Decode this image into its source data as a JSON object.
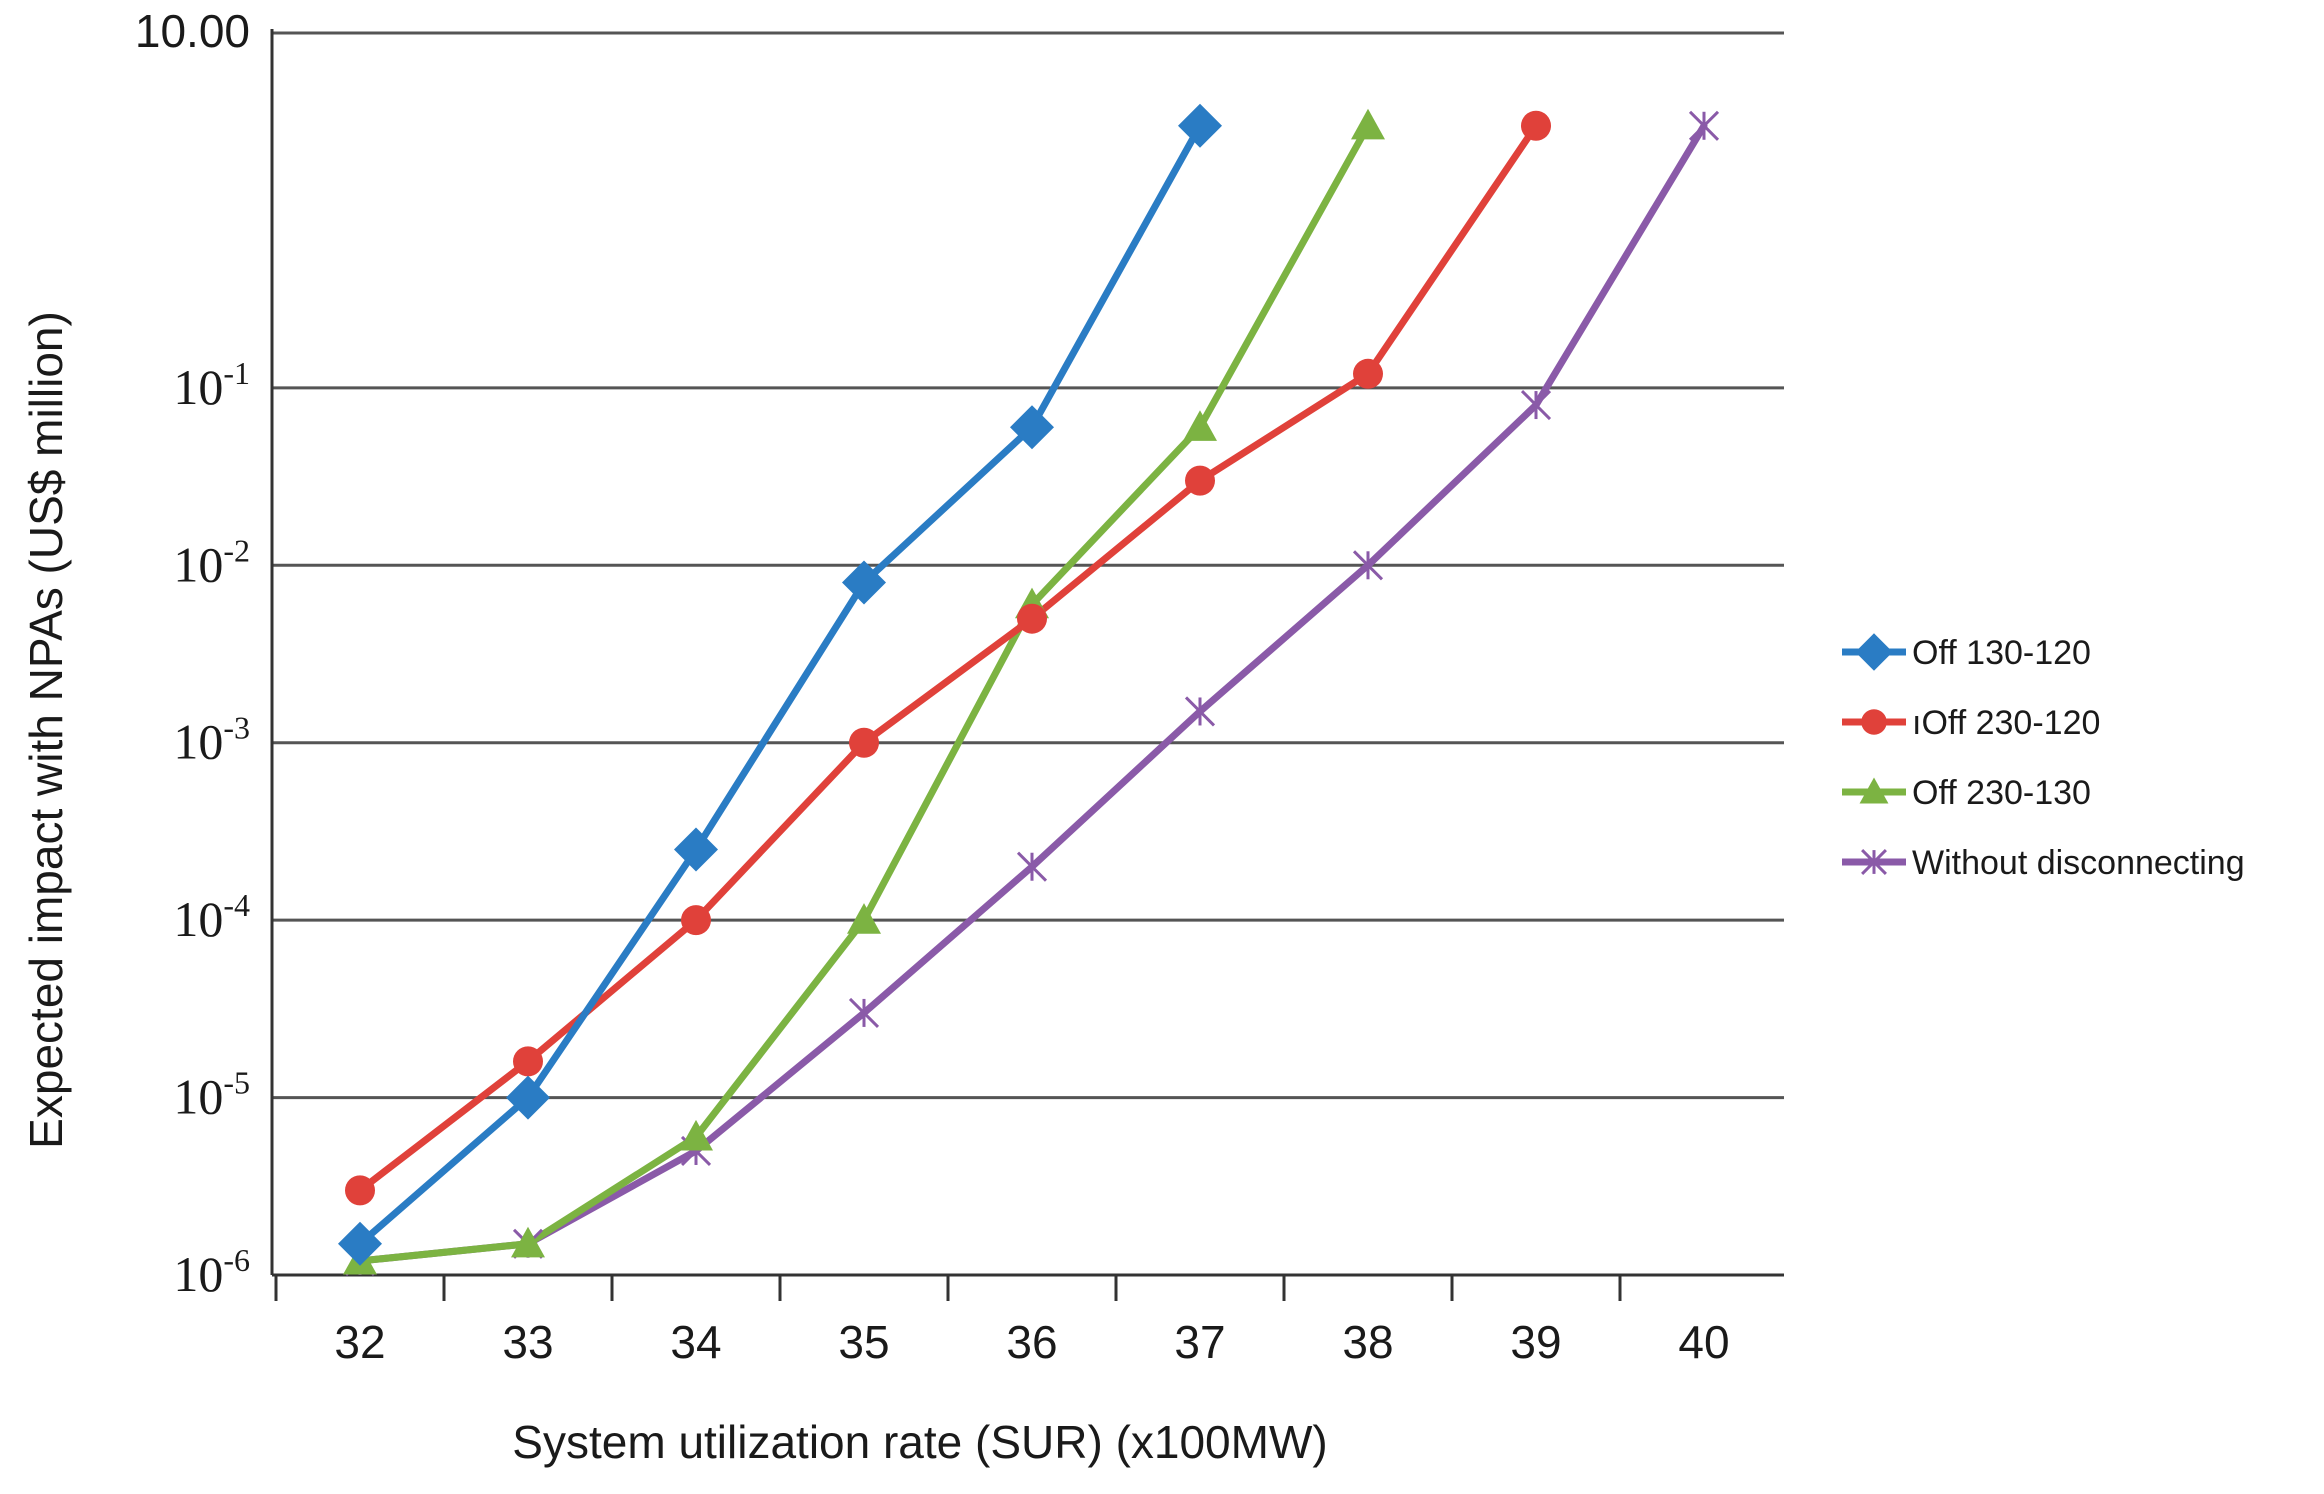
{
  "chart_data": {
    "type": "line",
    "title": "",
    "xlabel": "System utilization rate (SUR) (x100MW)",
    "ylabel": "Expected impact with NPAs (US$ million)",
    "yscale": "log",
    "ylim": [
      1e-06,
      10
    ],
    "x_ticks": [
      "32",
      "33",
      "34",
      "35",
      "36",
      "37",
      "38",
      "39",
      "40"
    ],
    "y_ticks": [
      {
        "value": 10,
        "label": "10.00",
        "sup": ""
      },
      {
        "value": 0.1,
        "label": "10",
        "sup": "-1"
      },
      {
        "value": 0.01,
        "label": "10",
        "sup": "-2"
      },
      {
        "value": 0.001,
        "label": "10",
        "sup": "-3"
      },
      {
        "value": 0.0001,
        "label": "10",
        "sup": "-4"
      },
      {
        "value": 1e-05,
        "label": "10",
        "sup": "-5"
      },
      {
        "value": 1e-06,
        "label": "10",
        "sup": "-6"
      }
    ],
    "grid": true,
    "legend_position": "right",
    "series": [
      {
        "name": "Off 130-120",
        "color": "#2a7cc4",
        "marker": "diamond",
        "x": [
          32,
          33,
          34,
          35,
          36,
          37
        ],
        "y": [
          1.5e-06,
          1e-05,
          0.00025,
          0.008,
          0.06,
          3
        ]
      },
      {
        "name": "Off 230-120",
        "legend_label": "ıOff 230-120",
        "color": "#e0413a",
        "marker": "circle",
        "x": [
          32,
          33,
          34,
          35,
          36,
          37,
          38,
          39
        ],
        "y": [
          3e-06,
          1.6e-05,
          0.0001,
          0.001,
          0.005,
          0.03,
          0.12,
          3
        ]
      },
      {
        "name": "Off 230-130",
        "color": "#7cb342",
        "marker": "triangle",
        "x": [
          32,
          33,
          34,
          35,
          36,
          37,
          38
        ],
        "y": [
          1.2e-06,
          1.5e-06,
          6e-06,
          0.0001,
          0.006,
          0.06,
          3
        ]
      },
      {
        "name": "Without disconnecting",
        "color": "#8a5aa8",
        "marker": "star",
        "x": [
          32,
          33,
          34,
          35,
          36,
          37,
          38,
          39,
          40
        ],
        "y": [
          1.2e-06,
          1.5e-06,
          5e-06,
          3e-05,
          0.0002,
          0.0015,
          0.01,
          0.08,
          3
        ]
      }
    ]
  }
}
